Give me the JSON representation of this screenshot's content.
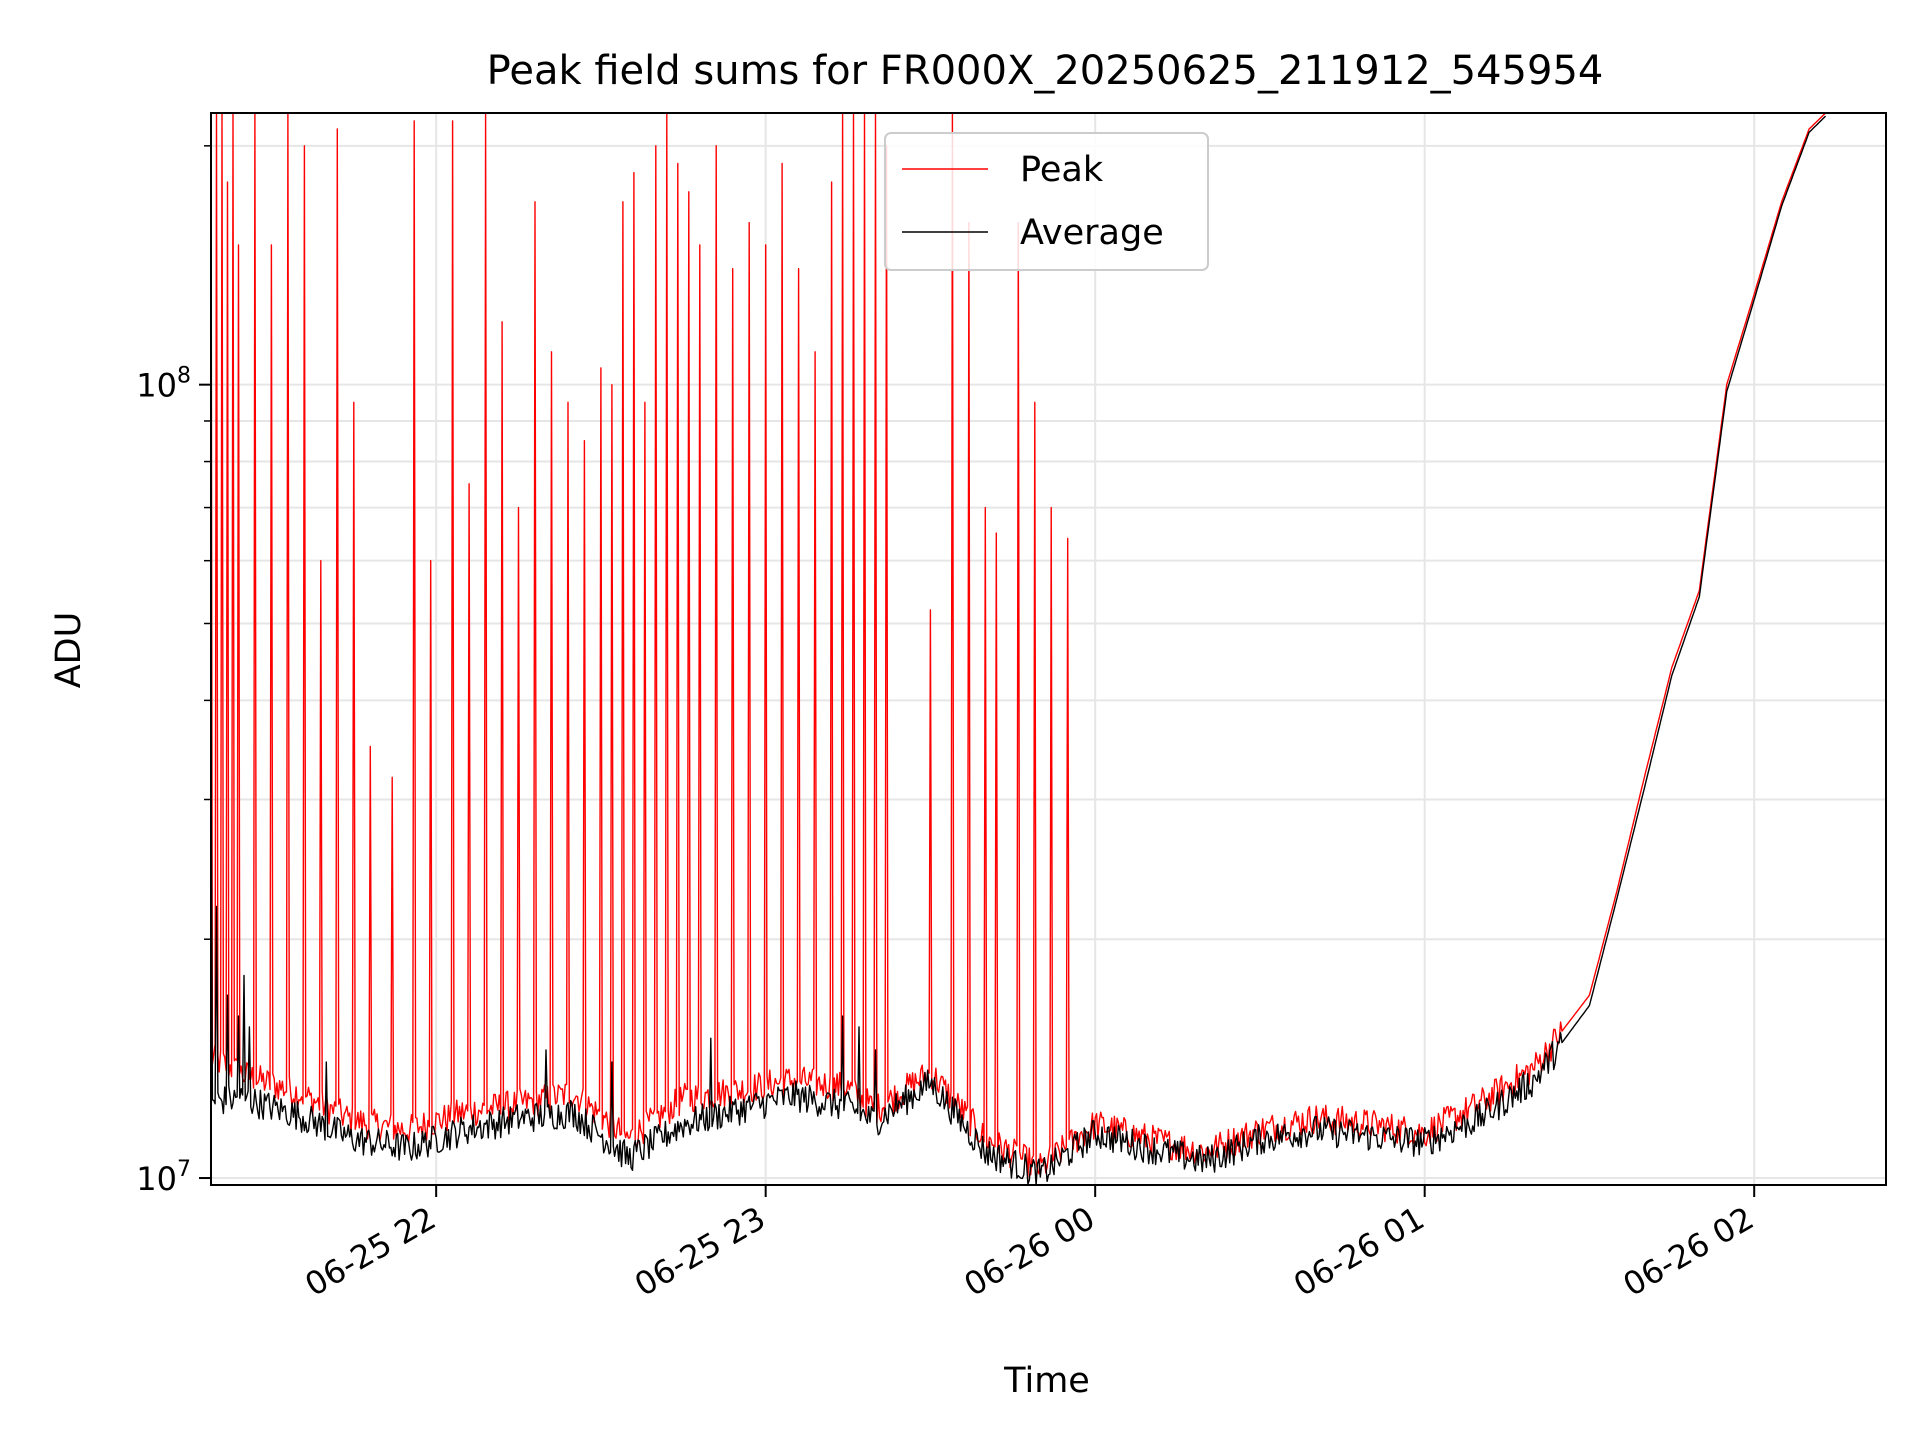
{
  "chart_data": {
    "type": "line",
    "title": "Peak field sums for FR000X_20250625_211912_545954",
    "xlabel": "Time",
    "ylabel": "ADU",
    "yscale": "log",
    "grid": true,
    "legend": "upper center",
    "xlim": [
      "2025-06-25 21:19",
      "2025-06-26 02:24"
    ],
    "ylim": [
      9800000,
      220000000
    ],
    "x_ticks": [
      "06-25 22",
      "06-25 23",
      "06-26 00",
      "06-26 01",
      "06-26 02"
    ],
    "x_tick_times": [
      "2025-06-25 22:00",
      "2025-06-25 23:00",
      "2025-06-26 00:00",
      "2025-06-26 01:00",
      "2025-06-26 02:00"
    ],
    "y_ticks": [
      {
        "base": "10",
        "exp": "7",
        "value": 10000000
      },
      {
        "base": "10",
        "exp": "8",
        "value": 100000000
      }
    ],
    "series": [
      {
        "name": "Peak",
        "color": "#ff0000",
        "times": [
          "2025-06-25 21:19",
          "2025-06-25 21:25",
          "2025-06-25 21:35",
          "2025-06-25 21:45",
          "2025-06-25 21:55",
          "2025-06-25 22:05",
          "2025-06-25 22:15",
          "2025-06-25 22:25",
          "2025-06-25 22:35",
          "2025-06-25 22:45",
          "2025-06-25 22:55",
          "2025-06-25 23:05",
          "2025-06-25 23:15",
          "2025-06-25 23:20",
          "2025-06-25 23:30",
          "2025-06-25 23:40",
          "2025-06-25 23:50",
          "2025-06-26 00:00",
          "2025-06-26 00:10",
          "2025-06-26 00:20",
          "2025-06-26 00:30",
          "2025-06-26 00:40",
          "2025-06-26 00:50",
          "2025-06-26 01:00",
          "2025-06-26 01:10",
          "2025-06-26 01:20",
          "2025-06-26 01:30",
          "2025-06-26 01:35",
          "2025-06-26 01:40",
          "2025-06-26 01:45",
          "2025-06-26 01:50",
          "2025-06-26 01:55",
          "2025-06-26 02:00",
          "2025-06-26 02:05",
          "2025-06-26 02:10",
          "2025-06-26 02:13"
        ],
        "baseline": [
          14200000,
          13500000,
          12800000,
          11800000,
          11500000,
          12100000,
          12400000,
          12800000,
          11200000,
          12600000,
          12900000,
          13300000,
          13000000,
          12200000,
          13600000,
          11200000,
          10300000,
          11700000,
          11200000,
          10800000,
          11500000,
          11900000,
          11700000,
          11400000,
          12400000,
          13800000,
          17000000,
          23000000,
          32000000,
          44000000,
          55000000,
          100000000,
          130000000,
          170000000,
          210000000,
          220000000
        ],
        "spikes": [
          [
            "2025-06-25 21:19",
            220000000
          ],
          [
            "2025-06-25 21:20",
            220000000
          ],
          [
            "2025-06-25 21:21",
            220000000
          ],
          [
            "2025-06-25 21:22",
            180000000
          ],
          [
            "2025-06-25 21:23",
            220000000
          ],
          [
            "2025-06-25 21:24",
            150000000
          ],
          [
            "2025-06-25 21:27",
            220000000
          ],
          [
            "2025-06-25 21:30",
            150000000
          ],
          [
            "2025-06-25 21:33",
            220000000
          ],
          [
            "2025-06-25 21:36",
            200000000
          ],
          [
            "2025-06-25 21:39",
            60000000
          ],
          [
            "2025-06-25 21:42",
            210000000
          ],
          [
            "2025-06-25 21:45",
            95000000
          ],
          [
            "2025-06-25 21:48",
            35000000
          ],
          [
            "2025-06-25 21:52",
            32000000
          ],
          [
            "2025-06-25 21:56",
            215000000
          ],
          [
            "2025-06-25 21:59",
            60000000
          ],
          [
            "2025-06-25 22:03",
            215000000
          ],
          [
            "2025-06-25 22:06",
            75000000
          ],
          [
            "2025-06-25 22:09",
            220000000
          ],
          [
            "2025-06-25 22:12",
            120000000
          ],
          [
            "2025-06-25 22:15",
            70000000
          ],
          [
            "2025-06-25 22:18",
            170000000
          ],
          [
            "2025-06-25 22:21",
            110000000
          ],
          [
            "2025-06-25 22:24",
            95000000
          ],
          [
            "2025-06-25 22:27",
            85000000
          ],
          [
            "2025-06-25 22:30",
            105000000
          ],
          [
            "2025-06-25 22:32",
            100000000
          ],
          [
            "2025-06-25 22:34",
            170000000
          ],
          [
            "2025-06-25 22:36",
            185000000
          ],
          [
            "2025-06-25 22:38",
            95000000
          ],
          [
            "2025-06-25 22:40",
            200000000
          ],
          [
            "2025-06-25 22:42",
            220000000
          ],
          [
            "2025-06-25 22:44",
            190000000
          ],
          [
            "2025-06-25 22:46",
            175000000
          ],
          [
            "2025-06-25 22:48",
            150000000
          ],
          [
            "2025-06-25 22:51",
            200000000
          ],
          [
            "2025-06-25 22:54",
            140000000
          ],
          [
            "2025-06-25 22:57",
            160000000
          ],
          [
            "2025-06-25 23:00",
            150000000
          ],
          [
            "2025-06-25 23:03",
            190000000
          ],
          [
            "2025-06-25 23:06",
            140000000
          ],
          [
            "2025-06-25 23:09",
            110000000
          ],
          [
            "2025-06-25 23:12",
            180000000
          ],
          [
            "2025-06-25 23:14",
            220000000
          ],
          [
            "2025-06-25 23:16",
            220000000
          ],
          [
            "2025-06-25 23:18",
            220000000
          ],
          [
            "2025-06-25 23:20",
            220000000
          ],
          [
            "2025-06-25 23:22",
            200000000
          ],
          [
            "2025-06-25 23:30",
            52000000
          ],
          [
            "2025-06-25 23:34",
            220000000
          ],
          [
            "2025-06-25 23:37",
            160000000
          ],
          [
            "2025-06-25 23:40",
            70000000
          ],
          [
            "2025-06-25 23:42",
            65000000
          ],
          [
            "2025-06-25 23:46",
            160000000
          ],
          [
            "2025-06-25 23:49",
            95000000
          ],
          [
            "2025-06-25 23:52",
            70000000
          ],
          [
            "2025-06-25 23:55",
            64000000
          ]
        ]
      },
      {
        "name": "Average",
        "color": "#000000",
        "times": [
          "2025-06-25 21:19",
          "2025-06-25 21:25",
          "2025-06-25 21:35",
          "2025-06-25 21:45",
          "2025-06-25 21:55",
          "2025-06-25 22:05",
          "2025-06-25 22:15",
          "2025-06-25 22:25",
          "2025-06-25 22:35",
          "2025-06-25 22:45",
          "2025-06-25 22:55",
          "2025-06-25 23:05",
          "2025-06-25 23:15",
          "2025-06-25 23:20",
          "2025-06-25 23:30",
          "2025-06-25 23:40",
          "2025-06-25 23:50",
          "2025-06-26 00:00",
          "2025-06-26 00:10",
          "2025-06-26 00:20",
          "2025-06-26 00:30",
          "2025-06-26 00:40",
          "2025-06-26 00:50",
          "2025-06-26 01:00",
          "2025-06-26 01:10",
          "2025-06-26 01:20",
          "2025-06-26 01:30",
          "2025-06-26 01:35",
          "2025-06-26 01:40",
          "2025-06-26 01:45",
          "2025-06-26 01:50",
          "2025-06-26 01:55",
          "2025-06-26 02:00",
          "2025-06-26 02:05",
          "2025-06-26 02:10",
          "2025-06-26 02:13"
        ],
        "baseline": [
          12500000,
          12600000,
          12000000,
          11200000,
          10900000,
          11500000,
          11900000,
          12100000,
          10600000,
          11700000,
          12200000,
          12700000,
          12300000,
          11800000,
          13200000,
          10800000,
          10100000,
          11400000,
          10900000,
          10500000,
          11200000,
          11500000,
          11300000,
          11100000,
          11900000,
          13300000,
          16500000,
          22500000,
          31000000,
          43000000,
          54000000,
          98000000,
          128000000,
          168000000,
          208000000,
          218000000
        ],
        "spikes": [
          [
            "2025-06-25 21:19",
            36000000
          ],
          [
            "2025-06-25 21:20",
            22000000
          ],
          [
            "2025-06-25 21:22",
            17000000
          ],
          [
            "2025-06-25 21:24",
            16000000
          ],
          [
            "2025-06-25 21:25",
            18000000
          ],
          [
            "2025-06-25 21:26",
            15500000
          ],
          [
            "2025-06-25 21:40",
            14000000
          ],
          [
            "2025-06-25 22:20",
            14500000
          ],
          [
            "2025-06-25 22:32",
            14000000
          ],
          [
            "2025-06-25 22:50",
            15000000
          ],
          [
            "2025-06-25 23:14",
            16000000
          ],
          [
            "2025-06-25 23:17",
            15500000
          ],
          [
            "2025-06-25 23:20",
            14500000
          ]
        ]
      }
    ]
  }
}
